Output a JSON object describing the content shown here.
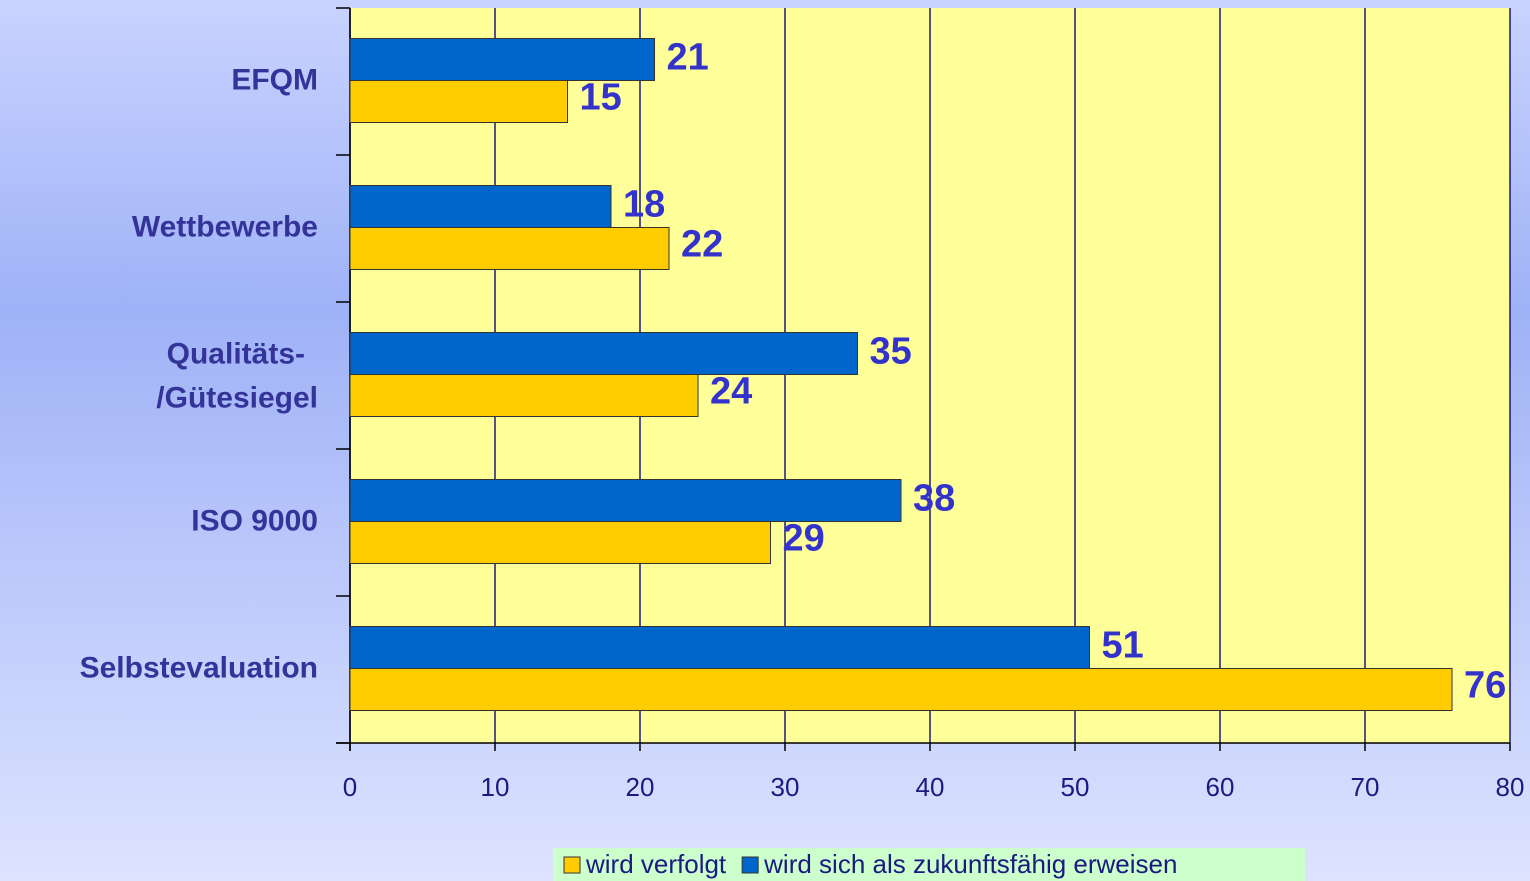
{
  "chart_data": {
    "type": "barh",
    "categories": [
      "EFQM",
      "Wettbewerbe",
      "Qualitäts-\n/Gütesiegel",
      "ISO 9000",
      "Selbstevaluation"
    ],
    "series": [
      {
        "name": "wird verfolgt",
        "color": "#ffcc00",
        "values": [
          15,
          22,
          24,
          29,
          76
        ]
      },
      {
        "name": "wird sich als zukunftsfähig erweisen",
        "color": "#0066cc",
        "values": [
          21,
          18,
          35,
          38,
          51
        ]
      }
    ],
    "xlim": [
      0,
      80
    ],
    "xticks": [
      0,
      10,
      20,
      30,
      40,
      50,
      60,
      70,
      80
    ],
    "grid": true
  }
}
